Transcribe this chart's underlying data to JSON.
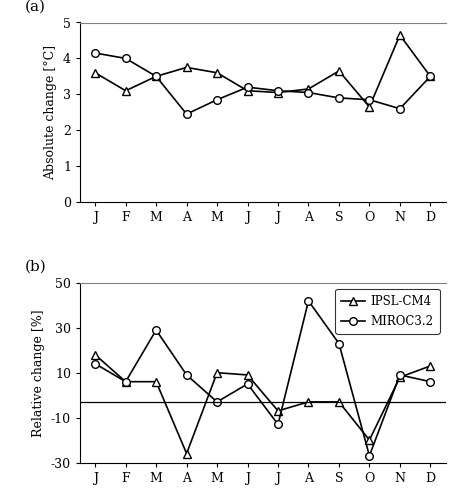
{
  "months": [
    "J",
    "F",
    "M",
    "A",
    "M",
    "J",
    "J",
    "A",
    "S",
    "O",
    "N",
    "D"
  ],
  "temp_ipsl": [
    3.6,
    3.1,
    3.5,
    3.75,
    3.6,
    3.1,
    3.05,
    3.15,
    3.65,
    2.65,
    4.65,
    3.5
  ],
  "temp_miroc": [
    4.15,
    4.0,
    3.5,
    2.45,
    2.85,
    3.2,
    3.1,
    3.05,
    2.9,
    2.85,
    2.6,
    3.5
  ],
  "precip_ipsl": [
    18,
    6,
    6,
    -26,
    10,
    9,
    -7,
    -3,
    -3,
    -20,
    8,
    13
  ],
  "precip_miroc": [
    14,
    6,
    29,
    9,
    -3,
    5,
    -13,
    42,
    23,
    -27,
    9,
    6
  ],
  "ylabel_a": "Absolute change [°C]",
  "ylabel_b": "Relative change [%]",
  "ylim_a": [
    0,
    5
  ],
  "ylim_b": [
    -30,
    50
  ],
  "yticks_a": [
    0,
    1,
    2,
    3,
    4,
    5
  ],
  "yticks_b": [
    -30,
    -10,
    10,
    30,
    50
  ],
  "label_a": "(a)",
  "label_b": "(b)",
  "legend_ipsl": "IPSL-CM4",
  "legend_miroc": "MIROC3.2",
  "hline_b": -3,
  "line_color": "black",
  "font_family": "DejaVu Serif"
}
